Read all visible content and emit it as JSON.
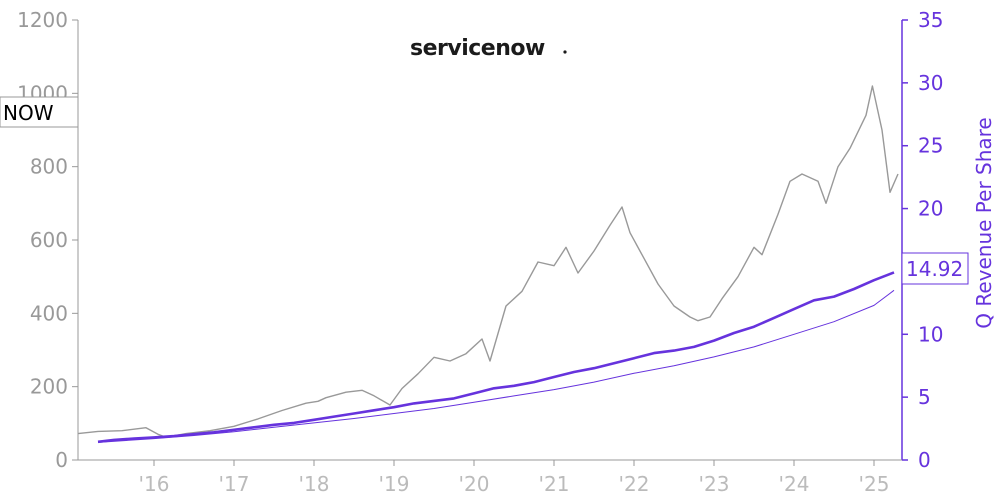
{
  "chart_data": {
    "type": "line",
    "ticker": "NOW",
    "logo_text": "servicenow",
    "ylabel_right": "Q Revenue Per Share",
    "current_value_label": "14.92",
    "x_ticks": [
      "'16",
      "'17",
      "'18",
      "'19",
      "'20",
      "'21",
      "'22",
      "'23",
      "'24",
      "'25"
    ],
    "x_tick_years": [
      2016,
      2017,
      2018,
      2019,
      2020,
      2021,
      2022,
      2023,
      2024,
      2025
    ],
    "xlim": [
      2015.05,
      2025.35
    ],
    "y_left": {
      "ticks": [
        0,
        200,
        400,
        600,
        800,
        1000,
        1200
      ],
      "ylim": [
        0,
        1200
      ]
    },
    "y_right": {
      "ticks": [
        0,
        5,
        10,
        15,
        20,
        25,
        30,
        35
      ],
      "ylim": [
        0,
        35
      ]
    },
    "colors": {
      "price": "#999999",
      "revenue": "#6633dd",
      "axis_left": "#999999",
      "axis_right": "#6633dd"
    },
    "series": [
      {
        "axis": "left",
        "x": [
          2015.05,
          2015.3,
          2015.6,
          2015.9,
          2016.05,
          2016.15,
          2016.4,
          2016.7,
          2017.0,
          2017.3,
          2017.6,
          2017.9,
          2018.05,
          2018.15,
          2018.4,
          2018.6,
          2018.75,
          2018.95,
          2019.1,
          2019.3,
          2019.5,
          2019.7,
          2019.9,
          2020.1,
          2020.2,
          2020.4,
          2020.6,
          2020.8,
          2021.0,
          2021.15,
          2021.3,
          2021.5,
          2021.7,
          2021.85,
          2021.95,
          2022.1,
          2022.3,
          2022.5,
          2022.7,
          2022.8,
          2022.95,
          2023.1,
          2023.3,
          2023.5,
          2023.6,
          2023.8,
          2023.95,
          2024.1,
          2024.3,
          2024.4,
          2024.55,
          2024.7,
          2024.9,
          2024.98,
          2025.1,
          2025.2,
          2025.3
        ],
        "values": [
          72,
          78,
          80,
          88,
          70,
          62,
          72,
          80,
          92,
          112,
          135,
          155,
          160,
          170,
          185,
          190,
          175,
          150,
          195,
          235,
          280,
          270,
          290,
          330,
          270,
          420,
          460,
          540,
          530,
          580,
          510,
          570,
          640,
          690,
          620,
          560,
          480,
          420,
          390,
          380,
          390,
          440,
          500,
          580,
          560,
          670,
          760,
          780,
          760,
          700,
          800,
          850,
          940,
          1020,
          900,
          730,
          780
        ]
      },
      {
        "axis": "right",
        "x": [
          2015.3,
          2015.5,
          2015.75,
          2016.0,
          2016.25,
          2016.5,
          2016.75,
          2017.0,
          2017.25,
          2017.5,
          2017.75,
          2018.0,
          2018.25,
          2018.5,
          2018.75,
          2019.0,
          2019.25,
          2019.5,
          2019.75,
          2020.0,
          2020.25,
          2020.5,
          2020.75,
          2021.0,
          2021.25,
          2021.5,
          2021.75,
          2022.0,
          2022.25,
          2022.5,
          2022.75,
          2023.0,
          2023.25,
          2023.5,
          2023.75,
          2024.0,
          2024.25,
          2024.5,
          2024.75,
          2025.0,
          2025.25
        ],
        "values": [
          1.45,
          1.6,
          1.7,
          1.8,
          1.9,
          2.05,
          2.2,
          2.4,
          2.6,
          2.8,
          2.95,
          3.2,
          3.45,
          3.7,
          3.95,
          4.2,
          4.5,
          4.7,
          4.9,
          5.3,
          5.7,
          5.9,
          6.2,
          6.6,
          7.0,
          7.3,
          7.7,
          8.1,
          8.5,
          8.7,
          9.0,
          9.5,
          10.1,
          10.6,
          11.3,
          12.0,
          12.7,
          13.0,
          13.6,
          14.3,
          14.92
        ]
      },
      {
        "axis": "right",
        "x": [
          2015.3,
          2016.0,
          2016.5,
          2017.0,
          2017.5,
          2018.0,
          2018.5,
          2019.0,
          2019.5,
          2020.0,
          2020.5,
          2021.0,
          2021.5,
          2022.0,
          2022.5,
          2023.0,
          2023.5,
          2024.0,
          2024.5,
          2025.0,
          2025.25
        ],
        "values": [
          1.4,
          1.7,
          1.95,
          2.25,
          2.6,
          2.95,
          3.3,
          3.7,
          4.1,
          4.6,
          5.1,
          5.6,
          6.2,
          6.9,
          7.5,
          8.2,
          9.0,
          10.0,
          11.0,
          12.3,
          13.5
        ]
      }
    ]
  }
}
